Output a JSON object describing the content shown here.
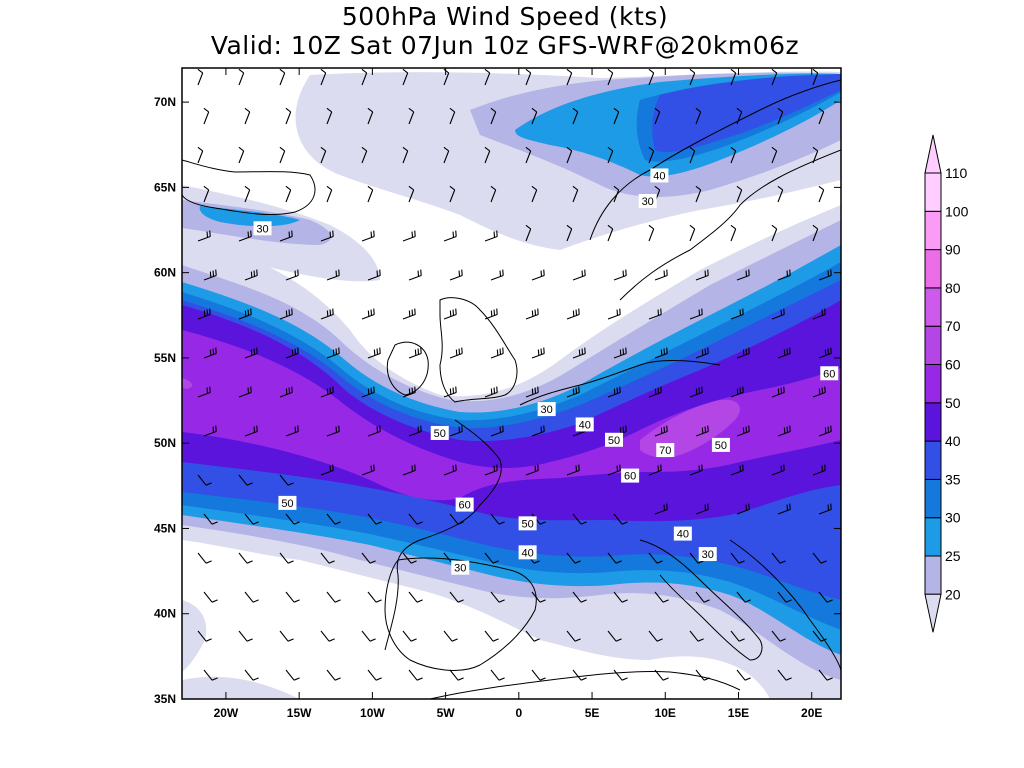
{
  "title": {
    "line1": "500hPa Wind Speed (kts)",
    "line2": "Valid: 10Z Sat 07Jun 10z GFS-WRF@20km06z"
  },
  "map": {
    "lon_range": [
      -23,
      22
    ],
    "lat_range": [
      35,
      72
    ],
    "lon_ticks": [
      "20W",
      "15W",
      "10W",
      "5W",
      "0",
      "5E",
      "10E",
      "15E",
      "20E"
    ],
    "lon_tick_values": [
      -20,
      -15,
      -10,
      -5,
      0,
      5,
      10,
      15,
      20
    ],
    "lat_ticks": [
      "70N",
      "65N",
      "60N",
      "55N",
      "50N",
      "45N",
      "40N",
      "35N"
    ],
    "lat_tick_values": [
      70,
      65,
      60,
      55,
      50,
      45,
      40,
      35
    ],
    "contour_labels": [
      {
        "text": "40",
        "lon": 9.6,
        "lat": 65.7
      },
      {
        "text": "30",
        "lon": 8.8,
        "lat": 64.2
      },
      {
        "text": "30",
        "lon": -17.5,
        "lat": 62.6
      },
      {
        "text": "60",
        "lon": 21.2,
        "lat": 54.1
      },
      {
        "text": "30",
        "lon": 1.9,
        "lat": 52.0
      },
      {
        "text": "40",
        "lon": 4.5,
        "lat": 51.1
      },
      {
        "text": "50",
        "lon": -5.4,
        "lat": 50.6
      },
      {
        "text": "50",
        "lon": 6.5,
        "lat": 50.2
      },
      {
        "text": "70",
        "lon": 10.0,
        "lat": 49.6
      },
      {
        "text": "50",
        "lon": 13.8,
        "lat": 49.9
      },
      {
        "text": "60",
        "lon": 7.6,
        "lat": 48.1
      },
      {
        "text": "60",
        "lon": -3.7,
        "lat": 46.4
      },
      {
        "text": "50",
        "lon": -15.8,
        "lat": 46.5
      },
      {
        "text": "50",
        "lon": 0.6,
        "lat": 45.3
      },
      {
        "text": "40",
        "lon": 11.2,
        "lat": 44.7
      },
      {
        "text": "40",
        "lon": 0.6,
        "lat": 43.6
      },
      {
        "text": "30",
        "lon": 12.9,
        "lat": 43.5
      },
      {
        "text": "30",
        "lon": -4.0,
        "lat": 42.7
      }
    ]
  },
  "colorbar": {
    "levels": [
      "20",
      "25",
      "30",
      "35",
      "40",
      "50",
      "60",
      "70",
      "80",
      "90",
      "100",
      "110"
    ],
    "colors": [
      "#dcdcf0",
      "#b4b4e6",
      "#1e9be6",
      "#1478dc",
      "#3250e6",
      "#5a14dc",
      "#9628e6",
      "#b446e6",
      "#cd5aeb",
      "#eb6ee6",
      "#fa9bf5",
      "#ffcdff"
    ]
  }
}
